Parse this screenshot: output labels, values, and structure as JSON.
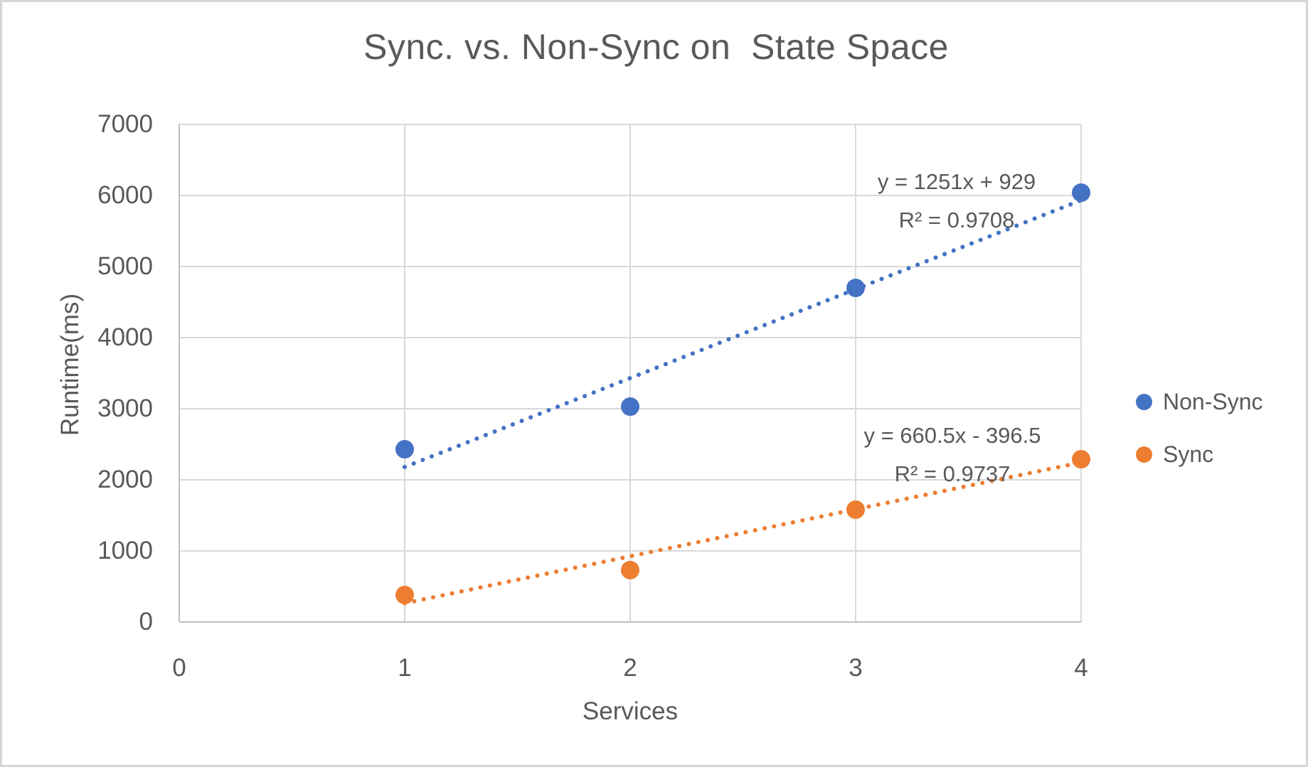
{
  "window": {
    "background": "#ffffff",
    "frame_border_color": "#d6d6d6"
  },
  "chart_data": {
    "type": "scatter",
    "title": "Sync. vs. Non-Sync on  State Space",
    "xlabel": "Services",
    "ylabel": "Runtime(ms)",
    "xlim": [
      0,
      4
    ],
    "ylim": [
      0,
      7000
    ],
    "x_ticks": [
      0,
      1,
      2,
      3,
      4
    ],
    "y_ticks": [
      0,
      1000,
      2000,
      3000,
      4000,
      5000,
      6000,
      7000
    ],
    "grid": true,
    "legend_position": "right",
    "colors": {
      "text": "#595959",
      "gridline": "#d9d9d9",
      "axis_line": "#bfbfbf"
    },
    "series": [
      {
        "name": "Non-Sync",
        "color": "#4472C4",
        "marker": "circle",
        "x": [
          1,
          2,
          3,
          4
        ],
        "y": [
          2430,
          3030,
          4700,
          6040
        ],
        "trendline": {
          "type": "linear",
          "slope": 1251,
          "intercept": 929,
          "equation": "y = 1251x + 929",
          "r2": 0.9708,
          "r2_label": "R² = 0.9708",
          "range": [
            1,
            4
          ],
          "style": "dotted"
        }
      },
      {
        "name": "Sync",
        "color": "#ED7D31",
        "marker": "circle",
        "x": [
          1,
          2,
          3,
          4
        ],
        "y": [
          380,
          730,
          1580,
          2290
        ],
        "trendline": {
          "type": "linear",
          "slope": 660.5,
          "intercept": -396.5,
          "equation": "y = 660.5x - 396.5",
          "r2": 0.9737,
          "r2_label": "R² = 0.9737",
          "range": [
            1,
            4
          ],
          "style": "dotted"
        }
      }
    ]
  }
}
